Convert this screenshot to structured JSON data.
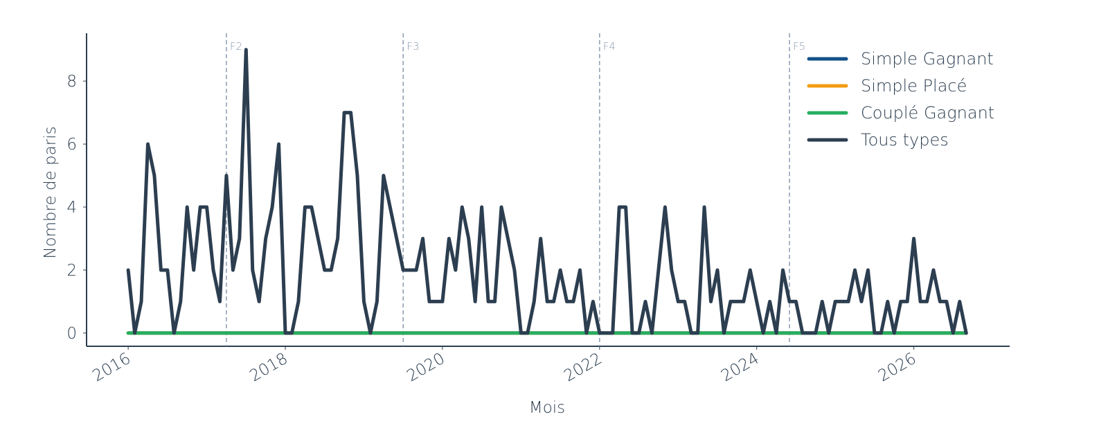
{
  "chart_data": {
    "type": "line",
    "x_label": "Mois",
    "y_label": "Nombre de paris",
    "x": [
      "2016-01",
      "2016-02",
      "2016-03",
      "2016-04",
      "2016-05",
      "2016-06",
      "2016-07",
      "2016-08",
      "2016-09",
      "2016-10",
      "2016-11",
      "2016-12",
      "2017-01",
      "2017-02",
      "2017-03",
      "2017-04",
      "2017-05",
      "2017-06",
      "2017-07",
      "2017-08",
      "2017-09",
      "2017-10",
      "2017-11",
      "2017-12",
      "2018-01",
      "2018-02",
      "2018-03",
      "2018-04",
      "2018-05",
      "2018-06",
      "2018-07",
      "2018-08",
      "2018-09",
      "2018-10",
      "2018-11",
      "2018-12",
      "2019-01",
      "2019-02",
      "2019-03",
      "2019-04",
      "2019-05",
      "2019-06",
      "2019-07",
      "2019-08",
      "2019-09",
      "2019-10",
      "2019-11",
      "2019-12",
      "2020-01",
      "2020-02",
      "2020-03",
      "2020-04",
      "2020-05",
      "2020-06",
      "2020-07",
      "2020-08",
      "2020-09",
      "2020-10",
      "2020-11",
      "2020-12",
      "2021-01",
      "2021-02",
      "2021-03",
      "2021-04",
      "2021-05",
      "2021-06",
      "2021-07",
      "2021-08",
      "2021-09",
      "2021-10",
      "2021-11",
      "2021-12",
      "2022-01",
      "2022-02",
      "2022-03",
      "2022-04",
      "2022-05",
      "2022-06",
      "2022-07",
      "2022-08",
      "2022-09",
      "2022-10",
      "2022-11",
      "2022-12",
      "2023-01",
      "2023-02",
      "2023-03",
      "2023-04",
      "2023-05",
      "2023-06",
      "2023-07",
      "2023-08",
      "2023-09",
      "2023-10",
      "2023-11",
      "2023-12",
      "2024-01",
      "2024-02",
      "2024-03",
      "2024-04",
      "2024-05",
      "2024-06",
      "2024-07",
      "2024-08",
      "2024-09",
      "2024-10",
      "2024-11",
      "2024-12",
      "2025-01",
      "2025-02",
      "2025-03",
      "2025-04",
      "2025-05",
      "2025-06",
      "2025-07",
      "2025-08",
      "2025-09",
      "2025-10",
      "2025-11",
      "2025-12",
      "2026-01",
      "2026-02",
      "2026-03",
      "2026-04",
      "2026-05",
      "2026-06",
      "2026-07",
      "2026-08",
      "2026-09"
    ],
    "series": [
      {
        "name": "Simple Gagnant",
        "color": "#13508a",
        "values": [
          0,
          0,
          0,
          0,
          0,
          0,
          0,
          0,
          0,
          0,
          0,
          0,
          0,
          0,
          0,
          0,
          0,
          0,
          0,
          0,
          0,
          0,
          0,
          0,
          0,
          0,
          0,
          0,
          0,
          0,
          0,
          0,
          0,
          0,
          0,
          0,
          0,
          0,
          0,
          0,
          0,
          0,
          0,
          0,
          0,
          0,
          0,
          0,
          0,
          0,
          0,
          0,
          0,
          0,
          0,
          0,
          0,
          0,
          0,
          0,
          0,
          0,
          0,
          0,
          0,
          0,
          0,
          0,
          0,
          0,
          0,
          0,
          0,
          0,
          0,
          0,
          0,
          0,
          0,
          0,
          0,
          0,
          0,
          0,
          0,
          0,
          0,
          0,
          0,
          0,
          0,
          0,
          0,
          0,
          0,
          0,
          0,
          0,
          0,
          0,
          0,
          0,
          0,
          0,
          0,
          0,
          0,
          0,
          0,
          0,
          0,
          0,
          0,
          0,
          0,
          0,
          0,
          0,
          0,
          0,
          0,
          0,
          0,
          0,
          0,
          0,
          0,
          0,
          0
        ]
      },
      {
        "name": "Simple Placé",
        "color": "#f39c12",
        "values": [
          0,
          0,
          0,
          0,
          0,
          0,
          0,
          0,
          0,
          0,
          0,
          0,
          0,
          0,
          0,
          0,
          0,
          0,
          0,
          0,
          0,
          0,
          0,
          0,
          0,
          0,
          0,
          0,
          0,
          0,
          0,
          0,
          0,
          0,
          0,
          0,
          0,
          0,
          0,
          0,
          0,
          0,
          0,
          0,
          0,
          0,
          0,
          0,
          0,
          0,
          0,
          0,
          0,
          0,
          0,
          0,
          0,
          0,
          0,
          0,
          0,
          0,
          0,
          0,
          0,
          0,
          0,
          0,
          0,
          0,
          0,
          0,
          0,
          0,
          0,
          0,
          0,
          0,
          0,
          0,
          0,
          0,
          0,
          0,
          0,
          0,
          0,
          0,
          0,
          0,
          0,
          0,
          0,
          0,
          0,
          0,
          0,
          0,
          0,
          0,
          0,
          0,
          0,
          0,
          0,
          0,
          0,
          0,
          0,
          0,
          0,
          0,
          0,
          0,
          0,
          0,
          0,
          0,
          0,
          0,
          0,
          0,
          0,
          0,
          0,
          0,
          0,
          0,
          0
        ]
      },
      {
        "name": "Couplé Gagnant",
        "color": "#27ae60",
        "values": [
          0,
          0,
          0,
          0,
          0,
          0,
          0,
          0,
          0,
          0,
          0,
          0,
          0,
          0,
          0,
          0,
          0,
          0,
          0,
          0,
          0,
          0,
          0,
          0,
          0,
          0,
          0,
          0,
          0,
          0,
          0,
          0,
          0,
          0,
          0,
          0,
          0,
          0,
          0,
          0,
          0,
          0,
          0,
          0,
          0,
          0,
          0,
          0,
          0,
          0,
          0,
          0,
          0,
          0,
          0,
          0,
          0,
          0,
          0,
          0,
          0,
          0,
          0,
          0,
          0,
          0,
          0,
          0,
          0,
          0,
          0,
          0,
          0,
          0,
          0,
          0,
          0,
          0,
          0,
          0,
          0,
          0,
          0,
          0,
          0,
          0,
          0,
          0,
          0,
          0,
          0,
          0,
          0,
          0,
          0,
          0,
          0,
          0,
          0,
          0,
          0,
          0,
          0,
          0,
          0,
          0,
          0,
          0,
          0,
          0,
          0,
          0,
          0,
          0,
          0,
          0,
          0,
          0,
          0,
          0,
          0,
          0,
          0,
          0,
          0,
          0,
          0,
          0,
          0
        ]
      },
      {
        "name": "Tous types",
        "color": "#2c3e50",
        "values": [
          2,
          0,
          1,
          6,
          5,
          2,
          2,
          0,
          1,
          4,
          2,
          4,
          4,
          2,
          1,
          5,
          2,
          3,
          9,
          2,
          1,
          3,
          4,
          6,
          0,
          0,
          1,
          4,
          4,
          3,
          2,
          2,
          3,
          7,
          7,
          5,
          1,
          0,
          1,
          5,
          4,
          3,
          2,
          2,
          2,
          3,
          1,
          1,
          1,
          3,
          2,
          4,
          3,
          1,
          4,
          1,
          1,
          4,
          3,
          2,
          0,
          0,
          1,
          3,
          1,
          1,
          2,
          1,
          1,
          2,
          0,
          1,
          0,
          0,
          0,
          4,
          4,
          0,
          0,
          1,
          0,
          2,
          4,
          2,
          1,
          1,
          0,
          0,
          4,
          1,
          2,
          0,
          1,
          1,
          1,
          2,
          1,
          0,
          1,
          0,
          2,
          1,
          1,
          0,
          0,
          0,
          1,
          0,
          1,
          1,
          1,
          2,
          1,
          2,
          0,
          0,
          1,
          0,
          1,
          1,
          3,
          1,
          1,
          2,
          1,
          1,
          0,
          1,
          0
        ]
      }
    ],
    "annotations": [
      {
        "x": "2017-04",
        "label": "F2"
      },
      {
        "x": "2019-07",
        "label": "F3"
      },
      {
        "x": "2022-01",
        "label": "F4"
      },
      {
        "x": "2024-06",
        "label": "F5"
      }
    ],
    "xlim": [
      2015.47,
      2027.22
    ],
    "xticks": [
      2016,
      2018,
      2020,
      2022,
      2024,
      2026
    ],
    "ylim": [
      -0.42,
      9.52
    ],
    "yticks": [
      0,
      2,
      4,
      6,
      8
    ],
    "legend": "upper right"
  }
}
